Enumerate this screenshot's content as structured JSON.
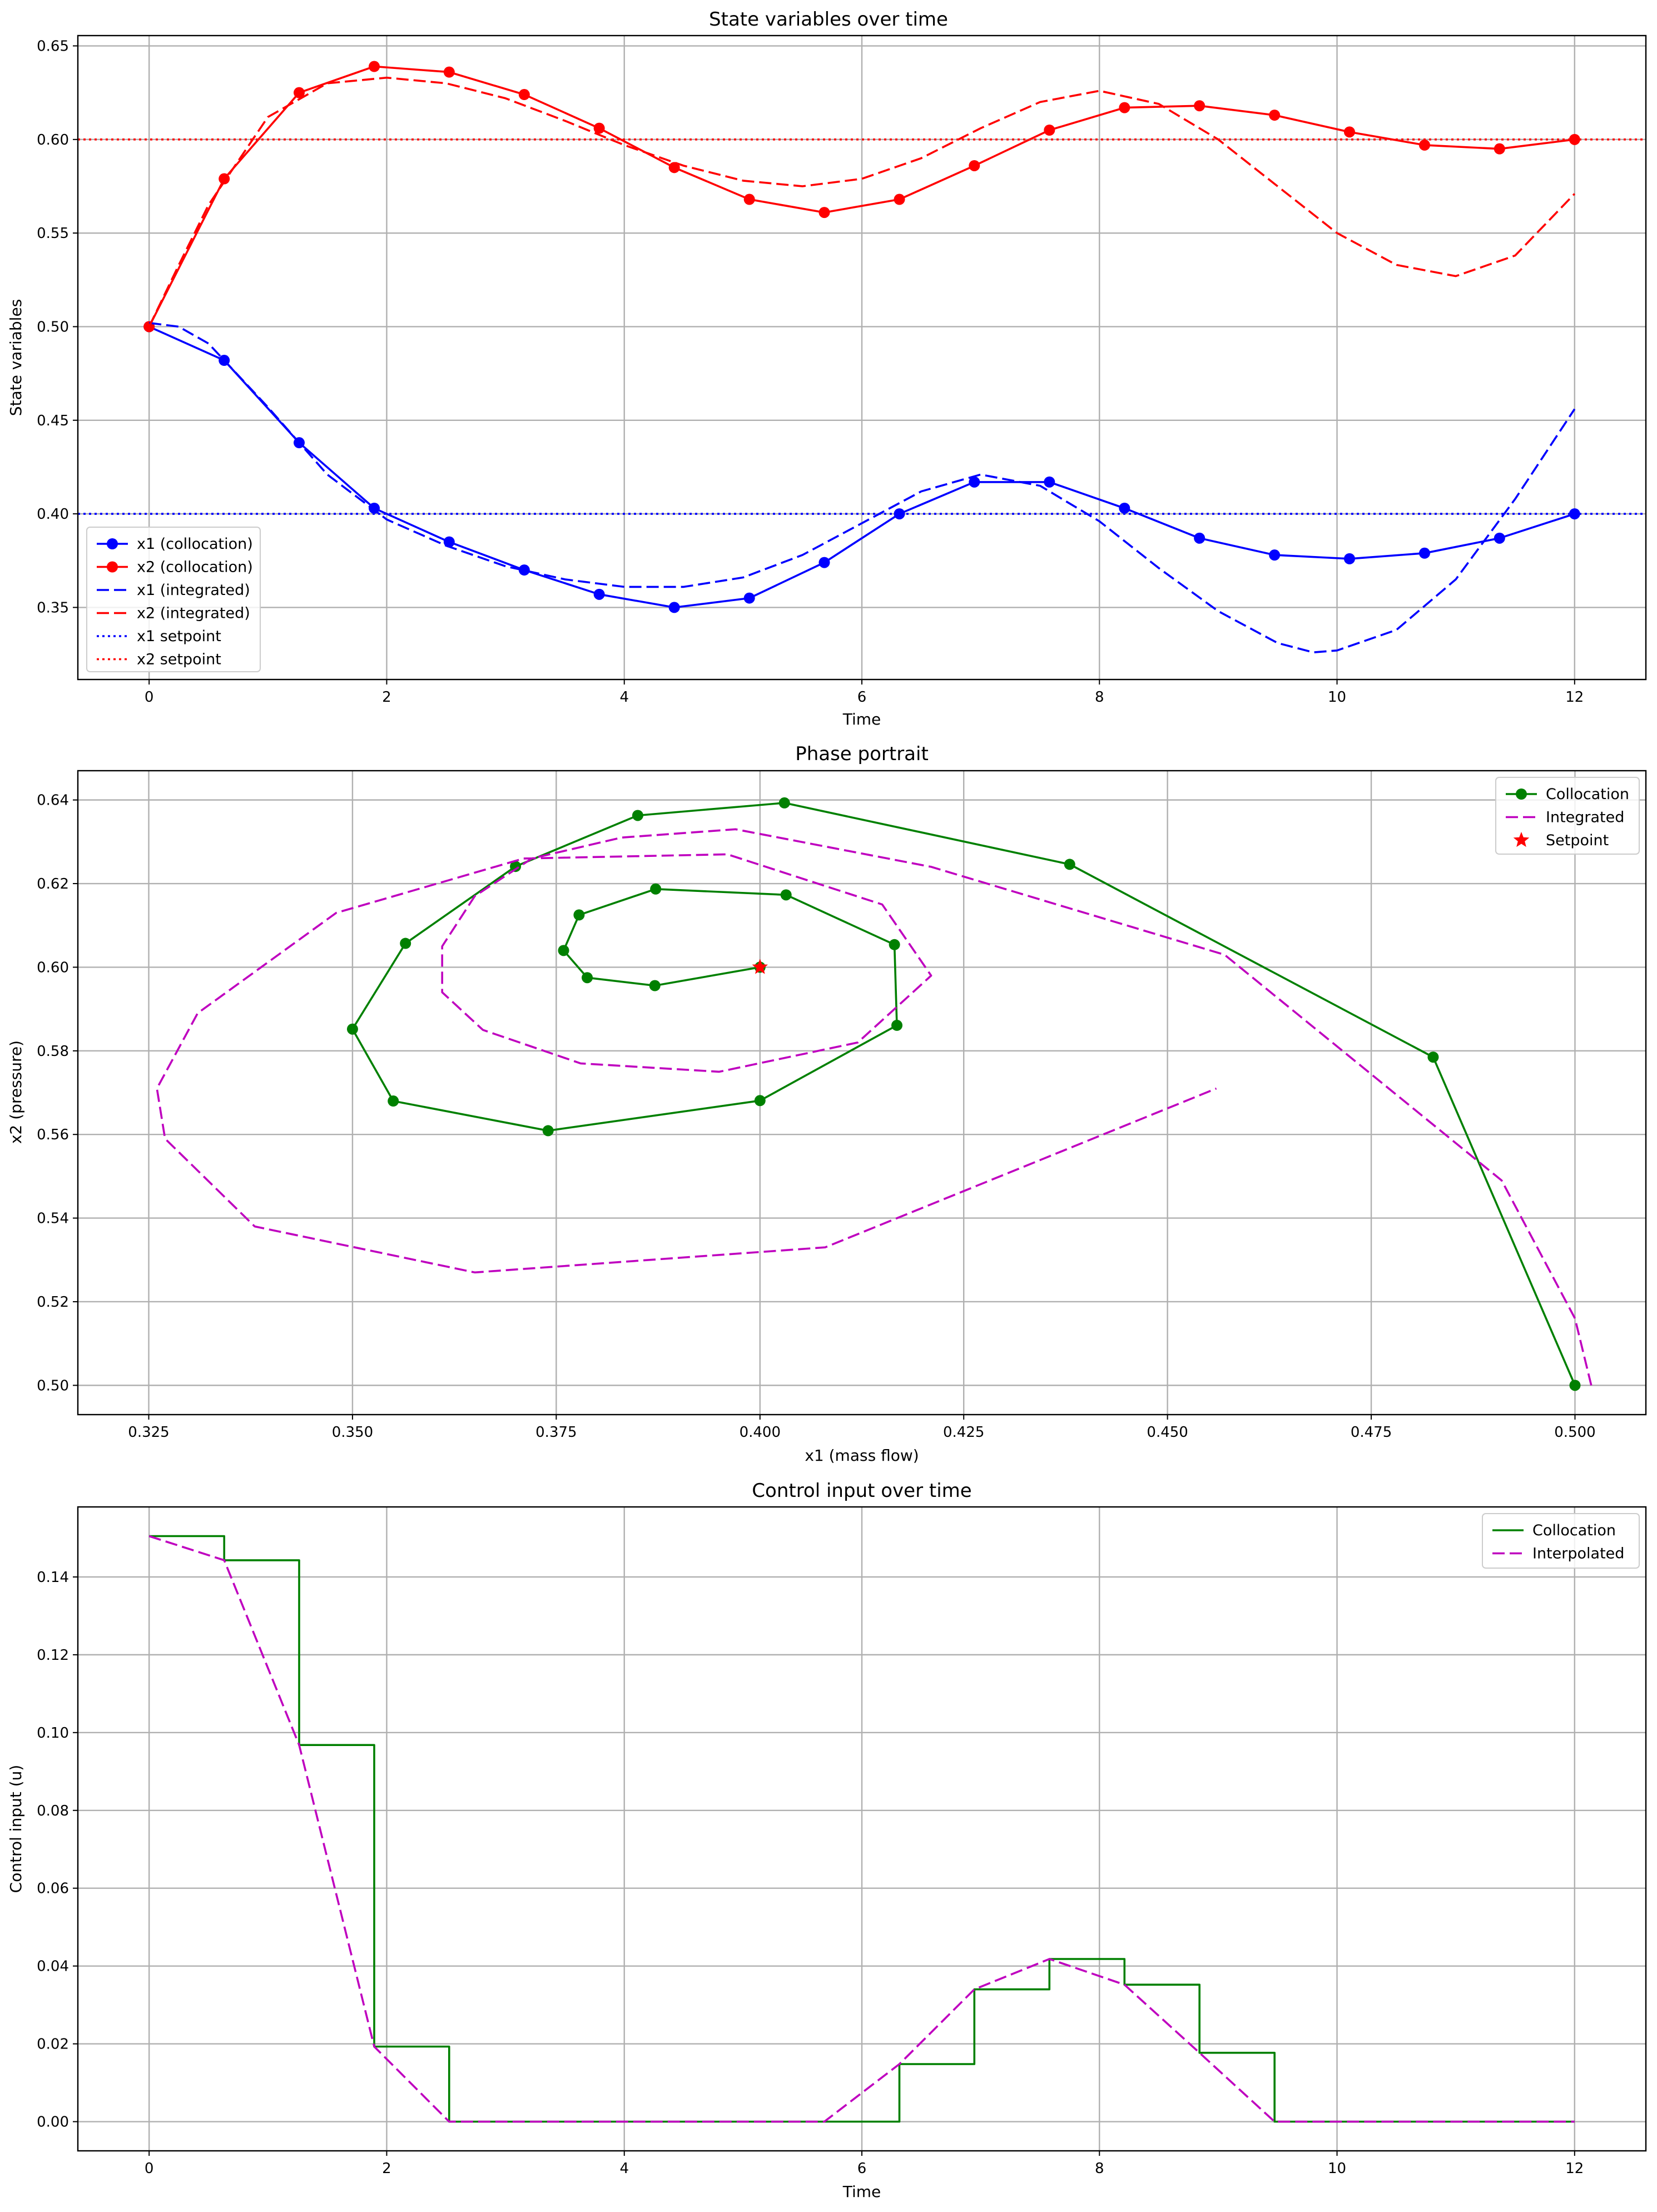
{
  "chart_data": [
    {
      "type": "line",
      "title": "State variables over time",
      "xlabel": "Time",
      "ylabel": "State variables",
      "xlim": [
        -0.6,
        12.6
      ],
      "ylim": [
        0.3115,
        0.6555
      ],
      "xticks": [
        0,
        2,
        4,
        6,
        8,
        10,
        12
      ],
      "yticks": [
        0.35,
        0.4,
        0.45,
        0.5,
        0.55,
        0.6,
        0.65
      ],
      "ytick_decimals": 2,
      "grid": true,
      "legend_position": "lower-left",
      "series": [
        {
          "name": "x1 (collocation)",
          "color": "#0000ff",
          "style": "solid",
          "marker": "circle",
          "x": [
            0,
            0.632,
            1.263,
            1.895,
            2.526,
            3.158,
            3.789,
            4.421,
            5.053,
            5.684,
            6.316,
            6.947,
            7.579,
            8.211,
            8.842,
            9.474,
            10.105,
            10.737,
            11.368,
            12
          ],
          "y": [
            0.5,
            0.482,
            0.438,
            0.403,
            0.385,
            0.37,
            0.357,
            0.35,
            0.355,
            0.374,
            0.4,
            0.417,
            0.417,
            0.403,
            0.387,
            0.378,
            0.376,
            0.379,
            0.387,
            0.4
          ]
        },
        {
          "name": "x2 (collocation)",
          "color": "#ff0000",
          "style": "solid",
          "marker": "circle",
          "x": [
            0,
            0.632,
            1.263,
            1.895,
            2.526,
            3.158,
            3.789,
            4.421,
            5.053,
            5.684,
            6.316,
            6.947,
            7.579,
            8.211,
            8.842,
            9.474,
            10.105,
            10.737,
            11.368,
            12
          ],
          "y": [
            0.5,
            0.579,
            0.625,
            0.639,
            0.636,
            0.624,
            0.606,
            0.585,
            0.568,
            0.561,
            0.568,
            0.586,
            0.605,
            0.617,
            0.618,
            0.613,
            0.604,
            0.597,
            0.595,
            0.6
          ]
        },
        {
          "name": "x1 (integrated)",
          "color": "#0000ff",
          "style": "dashed",
          "marker": "none",
          "x": [
            0,
            0.25,
            0.5,
            1.0,
            1.5,
            2.0,
            2.5,
            3.0,
            3.5,
            4.0,
            4.5,
            5.0,
            5.5,
            6.0,
            6.5,
            7.0,
            7.5,
            8.0,
            8.5,
            9.0,
            9.5,
            9.8,
            10.0,
            10.5,
            11.0,
            11.5,
            12.0
          ],
          "y": [
            0.502,
            0.5,
            0.491,
            0.457,
            0.421,
            0.397,
            0.383,
            0.372,
            0.365,
            0.361,
            0.361,
            0.366,
            0.378,
            0.395,
            0.412,
            0.421,
            0.415,
            0.396,
            0.371,
            0.348,
            0.331,
            0.326,
            0.327,
            0.338,
            0.365,
            0.408,
            0.456
          ]
        },
        {
          "name": "x2 (integrated)",
          "color": "#ff0000",
          "style": "dashed",
          "marker": "none",
          "x": [
            0,
            0.25,
            0.5,
            1.0,
            1.5,
            2.0,
            2.5,
            3.0,
            3.5,
            4.0,
            4.5,
            5.0,
            5.5,
            6.0,
            6.5,
            7.0,
            7.5,
            8.0,
            8.5,
            9.0,
            9.5,
            10.0,
            10.5,
            11.0,
            11.5,
            12.0
          ],
          "y": [
            0.5,
            0.533,
            0.565,
            0.612,
            0.63,
            0.633,
            0.63,
            0.622,
            0.61,
            0.597,
            0.586,
            0.578,
            0.575,
            0.579,
            0.59,
            0.606,
            0.62,
            0.626,
            0.619,
            0.6,
            0.575,
            0.55,
            0.533,
            0.527,
            0.538,
            0.571
          ]
        },
        {
          "name": "x1 setpoint",
          "color": "#0000ff",
          "style": "dotted",
          "marker": "none",
          "x": [
            -0.6,
            12.6
          ],
          "y": [
            0.4,
            0.4
          ]
        },
        {
          "name": "x2 setpoint",
          "color": "#ff0000",
          "style": "dotted",
          "marker": "none",
          "x": [
            -0.6,
            12.6
          ],
          "y": [
            0.6,
            0.6
          ]
        }
      ]
    },
    {
      "type": "line",
      "title": "Phase portrait",
      "xlabel": "x1 (mass flow)",
      "ylabel": "x2 (pressure)",
      "xlim": [
        0.3163,
        0.5087
      ],
      "ylim": [
        0.493,
        0.647
      ],
      "xticks": [
        0.325,
        0.35,
        0.375,
        0.4,
        0.425,
        0.45,
        0.475,
        0.5
      ],
      "yticks": [
        0.5,
        0.52,
        0.54,
        0.56,
        0.58,
        0.6,
        0.62,
        0.64
      ],
      "xtick_decimals": 3,
      "ytick_decimals": 2,
      "grid": true,
      "legend_position": "top-right",
      "series": [
        {
          "name": "Collocation",
          "color": "#008000",
          "style": "solid",
          "marker": "circle",
          "x": [
            0.5,
            0.4826,
            0.438,
            0.403,
            0.385,
            0.37,
            0.3565,
            0.35,
            0.355,
            0.374,
            0.4,
            0.4168,
            0.4165,
            0.4032,
            0.3872,
            0.3778,
            0.3759,
            0.3788,
            0.3871,
            0.4
          ],
          "y": [
            0.5,
            0.5785,
            0.6246,
            0.6393,
            0.6363,
            0.6241,
            0.6057,
            0.5852,
            0.568,
            0.5609,
            0.5681,
            0.5861,
            0.6054,
            0.6173,
            0.6187,
            0.6125,
            0.604,
            0.5975,
            0.5956,
            0.6
          ]
        },
        {
          "name": "Integrated",
          "color": "#bf00bf",
          "style": "dashed",
          "marker": "none",
          "x": [
            0.502,
            0.5,
            0.491,
            0.457,
            0.421,
            0.397,
            0.383,
            0.372,
            0.365,
            0.361,
            0.361,
            0.366,
            0.378,
            0.395,
            0.412,
            0.421,
            0.415,
            0.396,
            0.371,
            0.348,
            0.331,
            0.326,
            0.327,
            0.338,
            0.365,
            0.408,
            0.456
          ],
          "y": [
            0.5,
            0.516,
            0.549,
            0.603,
            0.624,
            0.633,
            0.631,
            0.626,
            0.617,
            0.605,
            0.594,
            0.585,
            0.577,
            0.575,
            0.582,
            0.598,
            0.615,
            0.627,
            0.626,
            0.613,
            0.589,
            0.571,
            0.559,
            0.538,
            0.527,
            0.533,
            0.571
          ]
        },
        {
          "name": "Setpoint",
          "color": "#ff0000",
          "style": "none",
          "marker": "star",
          "x": [
            0.4
          ],
          "y": [
            0.6
          ]
        }
      ]
    },
    {
      "type": "line",
      "title": "Control input over time",
      "xlabel": "Time",
      "ylabel": "Control input (u)",
      "xlim": [
        -0.6,
        12.6
      ],
      "ylim": [
        -0.0075,
        0.158
      ],
      "xticks": [
        0,
        2,
        4,
        6,
        8,
        10,
        12
      ],
      "yticks": [
        0.0,
        0.02,
        0.04,
        0.06,
        0.08,
        0.1,
        0.12,
        0.14
      ],
      "ytick_decimals": 2,
      "grid": true,
      "legend_position": "top-right",
      "series": [
        {
          "name": "Collocation",
          "color": "#008000",
          "style": "step",
          "marker": "none",
          "x": [
            0,
            0.632,
            1.263,
            1.895,
            2.526,
            3.158,
            3.789,
            4.421,
            5.053,
            5.684,
            6.316,
            6.947,
            7.579,
            8.211,
            8.842,
            9.474,
            10.105,
            10.737,
            11.368,
            12
          ],
          "y": [
            0.1505,
            0.1443,
            0.0968,
            0.0193,
            0.0,
            0.0,
            0.0,
            0.0,
            0.0,
            0.0,
            0.0148,
            0.034,
            0.0418,
            0.0352,
            0.0177,
            0.0,
            0.0,
            0.0,
            0.0,
            0.0
          ]
        },
        {
          "name": "Interpolated",
          "color": "#bf00bf",
          "style": "dashed",
          "marker": "none",
          "x": [
            0,
            0.632,
            1.263,
            1.895,
            2.526,
            3.158,
            3.789,
            4.421,
            5.053,
            5.684,
            6.316,
            6.947,
            7.579,
            8.211,
            8.842,
            9.474,
            10.105,
            10.737,
            11.368,
            12
          ],
          "y": [
            0.1505,
            0.1443,
            0.0968,
            0.0193,
            0.0,
            0.0,
            0.0,
            0.0,
            0.0,
            0.0,
            0.0148,
            0.034,
            0.0418,
            0.0352,
            0.0177,
            0.0,
            0.0,
            0.0,
            0.0,
            0.0
          ]
        }
      ]
    }
  ]
}
